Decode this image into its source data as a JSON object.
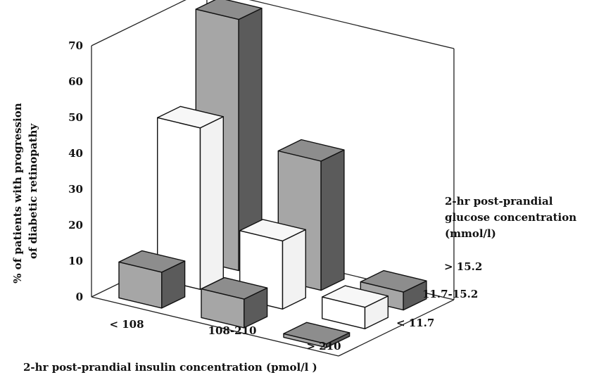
{
  "chart_data": {
    "type": "bar",
    "projection": "3d",
    "ylabel_lines": [
      "% of patients with progression",
      "of diabetic retinopathy"
    ],
    "xlabel": "2-hr post-prandial insulin concentration (pmol/l )",
    "zlabel_lines": [
      "2-hr post-prandial",
      "glucose concentration",
      "(mmol/l)"
    ],
    "ylim": [
      0,
      70
    ],
    "yticks": [
      "0",
      "10",
      "20",
      "30",
      "40",
      "50",
      "60",
      "70"
    ],
    "x_categories": [
      "< 108",
      "108-210",
      "> 210"
    ],
    "z_categories": [
      "< 11.7",
      "11.7-15.2",
      "> 15.2"
    ],
    "series": [
      {
        "name": "< 11.7",
        "values": [
          10,
          8,
          1
        ],
        "color": "#a6a6a6"
      },
      {
        "name": "11.7-15.2",
        "values": [
          45,
          19,
          6
        ],
        "color": "#ffffff"
      },
      {
        "name": "> 15.2",
        "values": [
          70,
          36,
          5
        ],
        "color": "#a6a6a6"
      }
    ]
  }
}
